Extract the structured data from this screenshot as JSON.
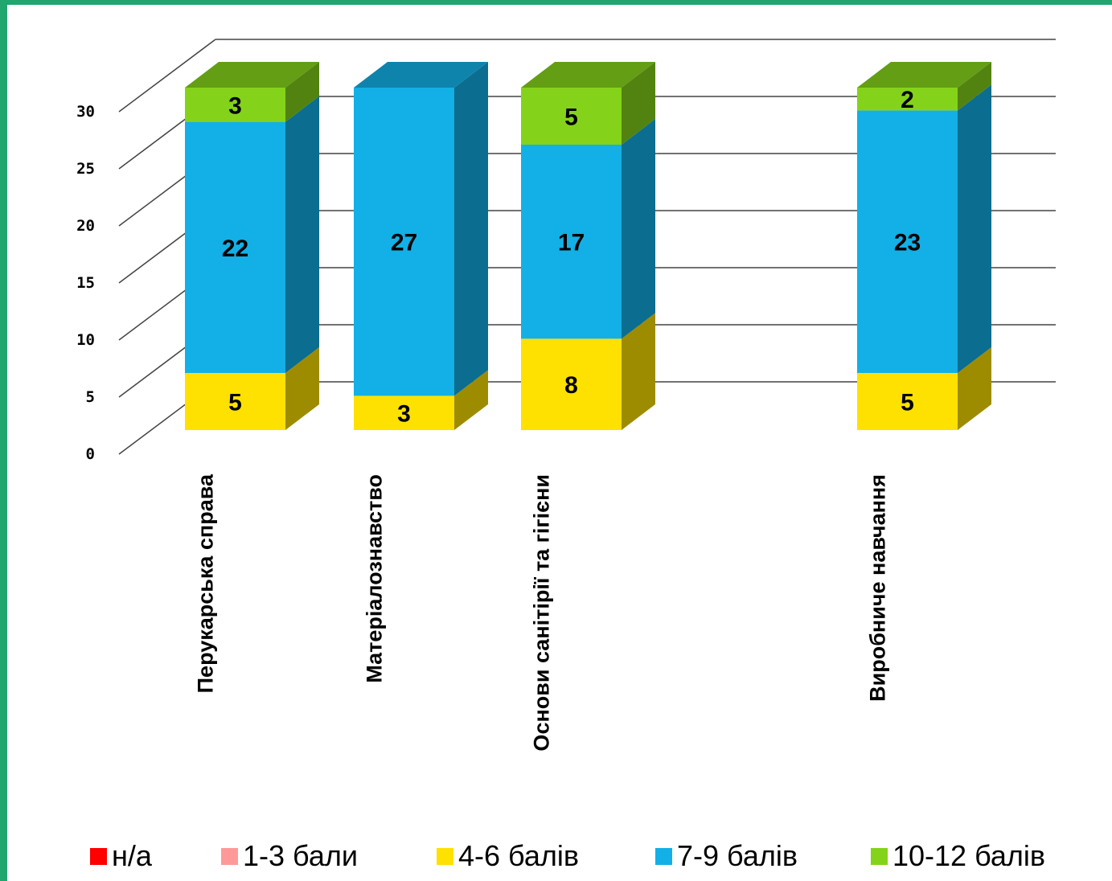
{
  "chart_data": {
    "type": "bar",
    "stacked": true,
    "three_d": true,
    "categories": [
      "Перукарська справа",
      "Матеріалознавство",
      "Основи санітірії та гігієни",
      "",
      "Виробниче навчання"
    ],
    "series": [
      {
        "name": "н/а",
        "color": "#ff0000",
        "values": [
          0,
          0,
          0,
          0,
          0
        ]
      },
      {
        "name": "1-3 бали",
        "color": "#ff9999",
        "values": [
          0,
          0,
          0,
          0,
          0
        ]
      },
      {
        "name": "4-6 балів",
        "color": "#ffe100",
        "values": [
          5,
          3,
          8,
          0,
          5
        ]
      },
      {
        "name": "7-9 балів",
        "color": "#12b0e6",
        "values": [
          22,
          27,
          17,
          0,
          23
        ]
      },
      {
        "name": "10-12 балів",
        "color": "#84d31a",
        "values": [
          3,
          0,
          5,
          0,
          2
        ]
      }
    ],
    "data_labels": [
      {
        "series": "4-6 балів",
        "labels": [
          "5",
          "3",
          "8",
          "",
          "5"
        ]
      },
      {
        "series": "7-9 балів",
        "labels": [
          "22",
          "27",
          "17",
          "",
          "23"
        ]
      },
      {
        "series": "10-12 балів",
        "labels": [
          "3",
          "",
          "5",
          "",
          "2"
        ]
      }
    ],
    "y_ticks": [
      "0",
      "5",
      "10",
      "15",
      "20",
      "25",
      "30"
    ],
    "ylim": [
      0,
      30
    ],
    "grid": true,
    "legend_position": "bottom"
  }
}
